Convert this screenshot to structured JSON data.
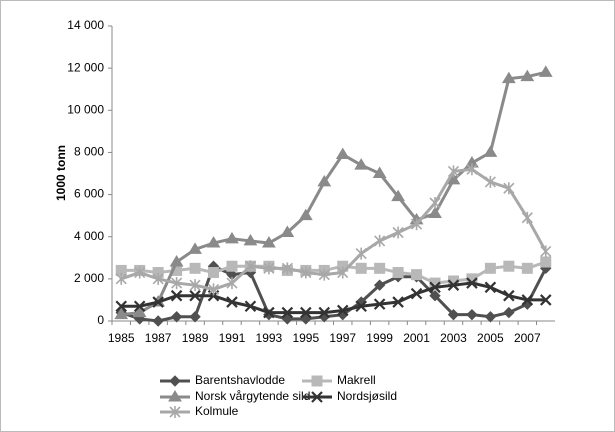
{
  "chart_data": {
    "type": "line",
    "y_label": "1000 tonn",
    "categories": [
      "1985",
      null,
      "1987",
      null,
      "1989",
      null,
      "1991",
      null,
      "1993",
      null,
      "1995",
      null,
      "1997",
      null,
      "1999",
      null,
      "2001",
      null,
      "2003",
      null,
      "2005",
      null,
      "2007",
      null
    ],
    "series": [
      {
        "name": "Barentshavlodde",
        "color": "#505050",
        "marker": "diamond",
        "values": [
          400,
          100,
          0,
          200,
          200,
          2600,
          2200,
          2300,
          300,
          100,
          100,
          200,
          300,
          900,
          1700,
          2100,
          2100,
          1200,
          300,
          300,
          200,
          400,
          800,
          2500
        ]
      },
      {
        "name": "Makrell",
        "color": "#b8b8b8",
        "marker": "square",
        "values": [
          2400,
          2400,
          2300,
          2400,
          2500,
          2300,
          2600,
          2600,
          2600,
          2400,
          2400,
          2400,
          2600,
          2500,
          2500,
          2300,
          2200,
          1800,
          1900,
          2000,
          2500,
          2600,
          2500,
          2800
        ]
      },
      {
        "name": "Norsk vårgytende sild",
        "color": "#8a8a8a",
        "marker": "triangle",
        "values": [
          300,
          400,
          900,
          2800,
          3400,
          3700,
          3900,
          3800,
          3700,
          4200,
          5000,
          6600,
          7900,
          7400,
          7000,
          5900,
          4800,
          5100,
          6700,
          7500,
          8000,
          11500,
          11600,
          11800
        ]
      },
      {
        "name": "Nordsjøsild",
        "color": "#333333",
        "marker": "x",
        "values": [
          700,
          700,
          900,
          1200,
          1200,
          1200,
          900,
          700,
          400,
          400,
          400,
          400,
          500,
          700,
          800,
          900,
          1300,
          1600,
          1700,
          1800,
          1600,
          1200,
          1000,
          1000
        ]
      },
      {
        "name": "Kolmule",
        "color": "#a8a8a8",
        "marker": "star",
        "values": [
          2000,
          2300,
          2000,
          1800,
          1700,
          1500,
          1800,
          2600,
          2500,
          2500,
          2300,
          2200,
          2300,
          3200,
          3800,
          4200,
          4600,
          5600,
          7100,
          7200,
          6600,
          6300,
          4900,
          3300
        ]
      }
    ],
    "ylim": [
      0,
      14000
    ],
    "yticks": [
      0,
      {
        "value": 2000,
        "label": "2 000"
      },
      {
        "value": 4000,
        "label": "4 000"
      },
      {
        "value": 6000,
        "label": "6 000"
      },
      {
        "value": 8000,
        "label": "8 000"
      },
      {
        "value": 10000,
        "label": "10 000"
      },
      {
        "value": 12000,
        "label": "12 000"
      },
      {
        "value": 14000,
        "label": "14 000"
      }
    ],
    "grid": false,
    "legend": "bottom"
  }
}
